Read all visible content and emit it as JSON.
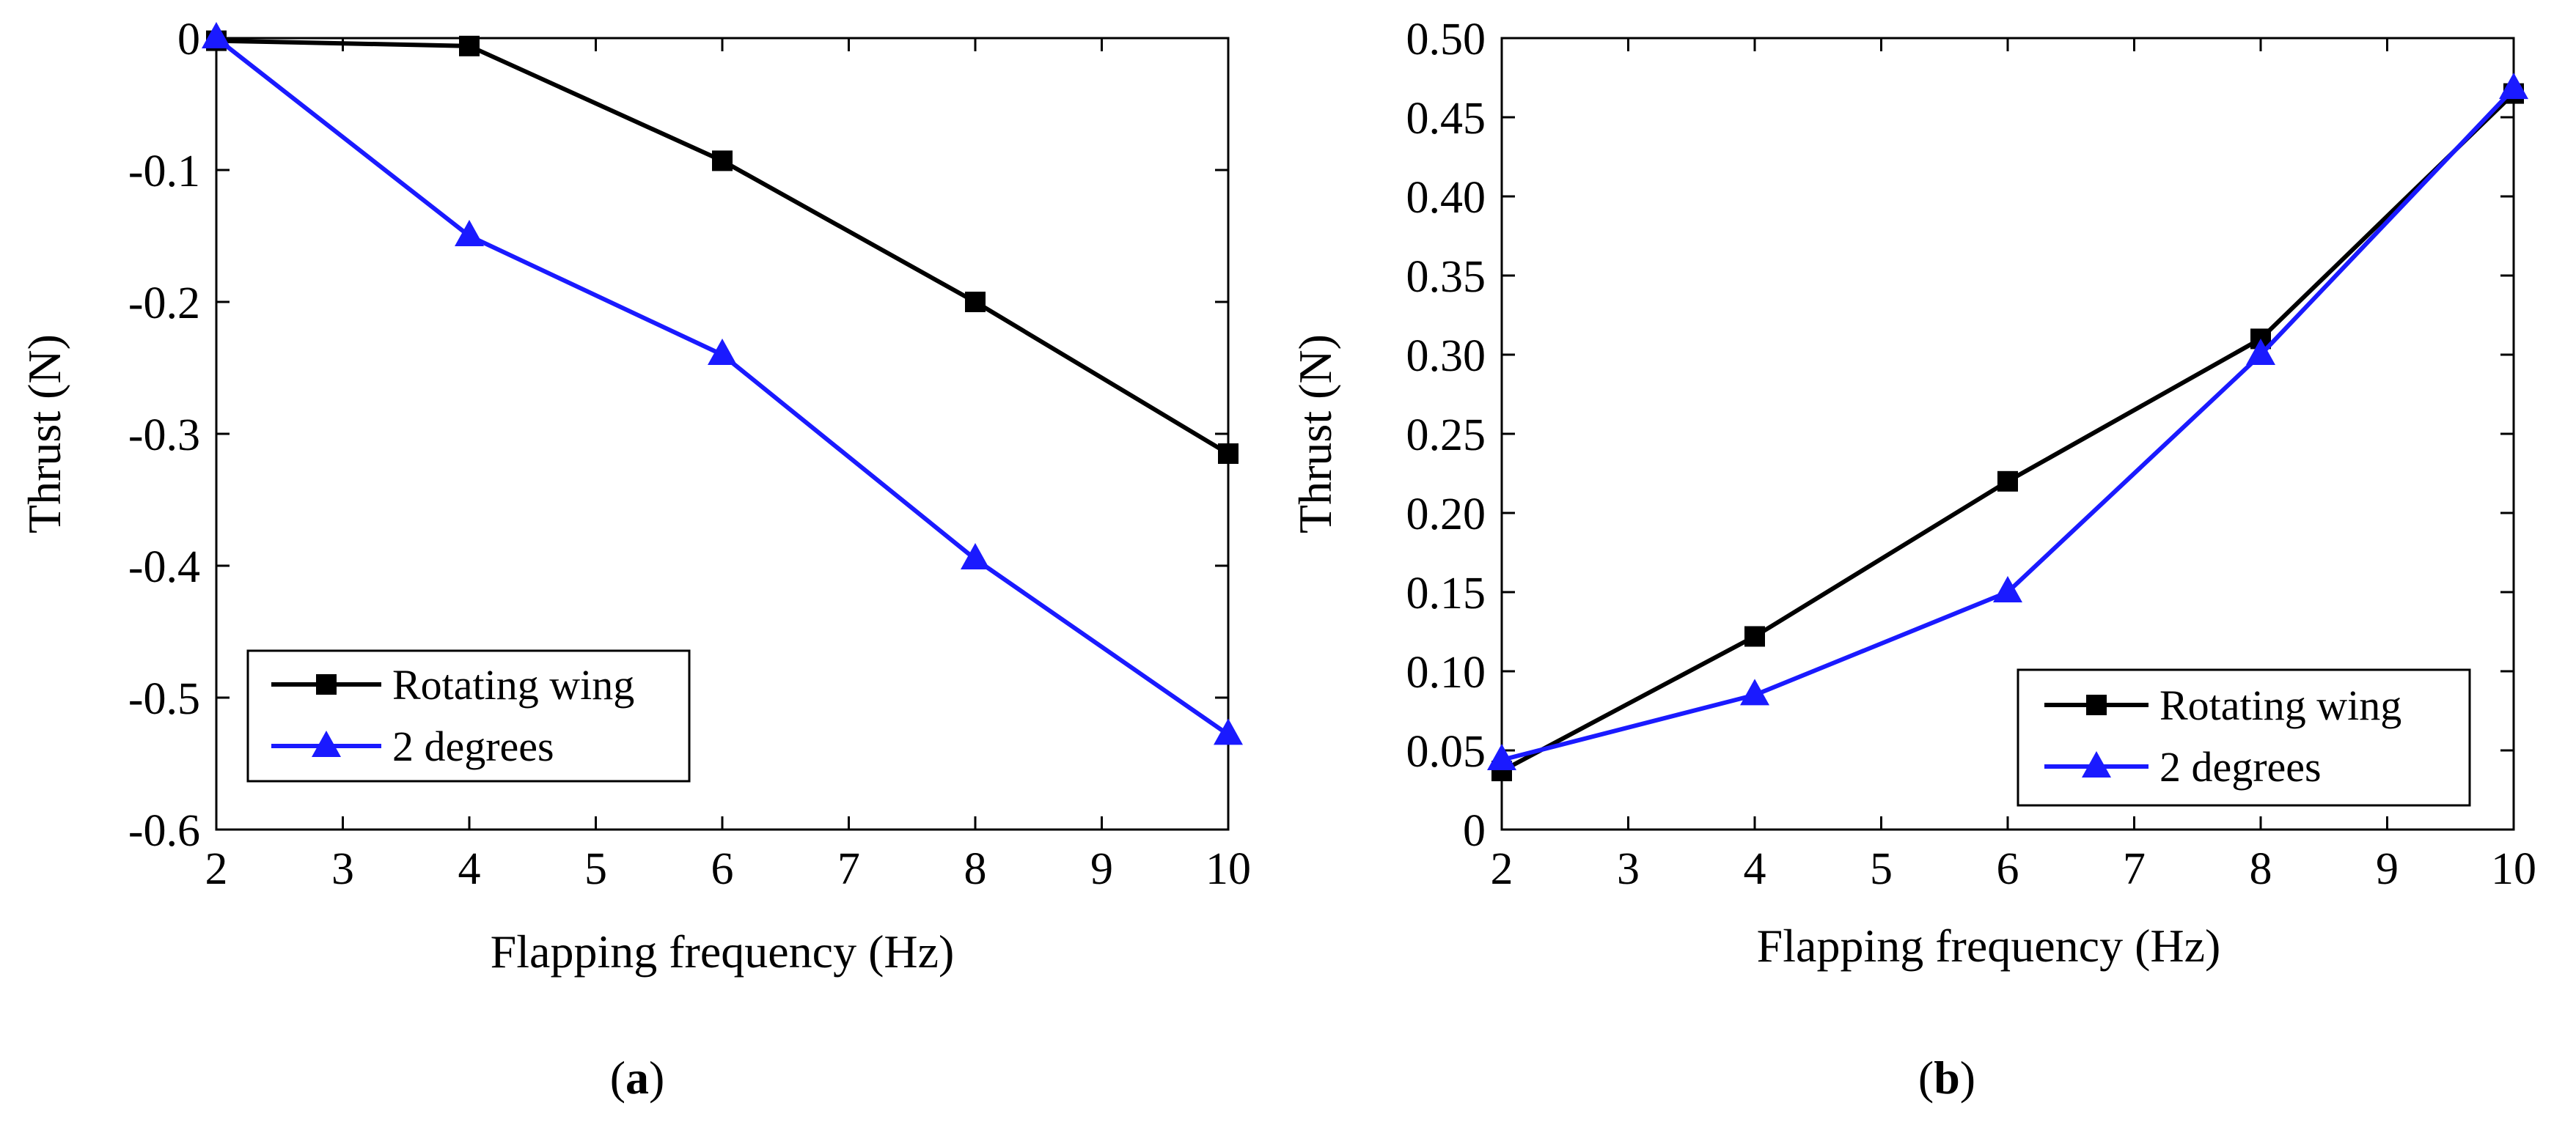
{
  "colors": {
    "rotating": "#000000",
    "degrees": "#1a1aff"
  },
  "chart_data": [
    {
      "type": "line",
      "caption": "(a)",
      "caption_letter": "a",
      "title": "",
      "xlabel": "Flapping frequency (Hz)",
      "ylabel": "Thrust (N)",
      "xlim": [
        2,
        10
      ],
      "ylim": [
        -0.6,
        0
      ],
      "xticks": [
        2,
        3,
        4,
        5,
        6,
        7,
        8,
        9,
        10
      ],
      "xtick_labels": [
        "2",
        "3",
        "4",
        "5",
        "6",
        "7",
        "8",
        "9",
        "10"
      ],
      "yticks": [
        0,
        -0.1,
        -0.2,
        -0.3,
        -0.4,
        -0.5,
        -0.6
      ],
      "ytick_labels": [
        "0",
        "-0.1",
        "-0.2",
        "-0.3",
        "-0.4",
        "-0.5",
        "-0.6"
      ],
      "legend_position": "bottom-left",
      "x": [
        2,
        4,
        6,
        8,
        10
      ],
      "series": [
        {
          "name": "Rotating wing",
          "marker": "square",
          "color": "#000000",
          "values": [
            -0.002,
            -0.006,
            -0.093,
            -0.2,
            -0.315
          ]
        },
        {
          "name": "2 degrees",
          "marker": "triangle",
          "color": "#1a1aff",
          "values": [
            0,
            -0.15,
            -0.24,
            -0.395,
            -0.528
          ]
        }
      ]
    },
    {
      "type": "line",
      "caption": "(b)",
      "caption_letter": "b",
      "title": "",
      "xlabel": "Flapping frequency (Hz)",
      "ylabel": "Thrust (N)",
      "xlim": [
        2,
        10
      ],
      "ylim": [
        0,
        0.5
      ],
      "xticks": [
        2,
        3,
        4,
        5,
        6,
        7,
        8,
        9,
        10
      ],
      "xtick_labels": [
        "2",
        "3",
        "4",
        "5",
        "6",
        "7",
        "8",
        "9",
        "10"
      ],
      "yticks": [
        0,
        0.05,
        0.1,
        0.15,
        0.2,
        0.25,
        0.3,
        0.35,
        0.4,
        0.45,
        0.5
      ],
      "ytick_labels": [
        "0",
        "0.05",
        "0.10",
        "0.15",
        "0.20",
        "0.25",
        "0.30",
        "0.35",
        "0.40",
        "0.45",
        "0.50"
      ],
      "legend_position": "bottom-right",
      "x": [
        2,
        4,
        6,
        8,
        10
      ],
      "series": [
        {
          "name": "Rotating wing",
          "marker": "square",
          "color": "#000000",
          "values": [
            0.037,
            0.122,
            0.22,
            0.31,
            0.465
          ]
        },
        {
          "name": "2 degrees",
          "marker": "triangle",
          "color": "#1a1aff",
          "values": [
            0.044,
            0.085,
            0.15,
            0.3,
            0.468
          ]
        }
      ]
    }
  ]
}
